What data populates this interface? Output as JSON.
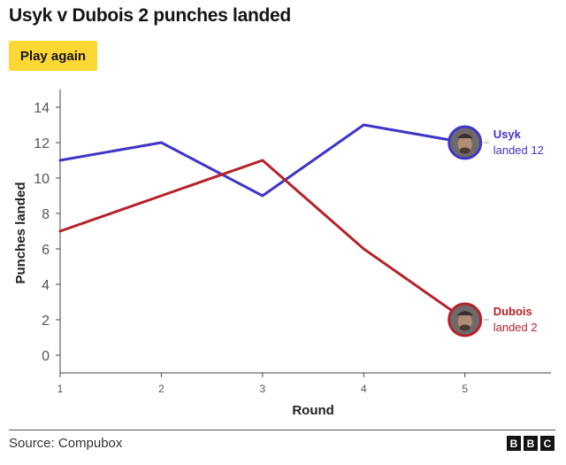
{
  "title": "Usyk v Dubois 2 punches landed",
  "play_label": "Play again",
  "source": "Source: Compubox",
  "logo": {
    "letters": [
      "B",
      "B",
      "C"
    ]
  },
  "colors": {
    "usyk": "#3f35c7",
    "dubois": "#b5222b",
    "button": "#fdd835",
    "axis": "#444444"
  },
  "chart_data": {
    "type": "line",
    "title": "Usyk v Dubois 2 punches landed",
    "xlabel": "Round",
    "ylabel": "Punches landed",
    "x": [
      1,
      2,
      3,
      4,
      5
    ],
    "xlim": [
      1,
      5.85
    ],
    "ylim": [
      -1,
      15
    ],
    "yticks": [
      0,
      2,
      4,
      6,
      8,
      10,
      12,
      14
    ],
    "xticks": [
      1,
      2,
      3,
      4,
      5
    ],
    "grid": false,
    "series": [
      {
        "name": "Usyk",
        "values": [
          11,
          12,
          9,
          13,
          12
        ],
        "color": "#3f35c7",
        "annotation": [
          "Usyk",
          "landed 12"
        ],
        "icon": "usyk-face-icon"
      },
      {
        "name": "Dubois",
        "values": [
          7,
          9,
          11,
          6,
          2
        ],
        "color": "#b5222b",
        "annotation": [
          "Dubois",
          "landed 2"
        ],
        "icon": "dubois-face-icon"
      }
    ]
  }
}
